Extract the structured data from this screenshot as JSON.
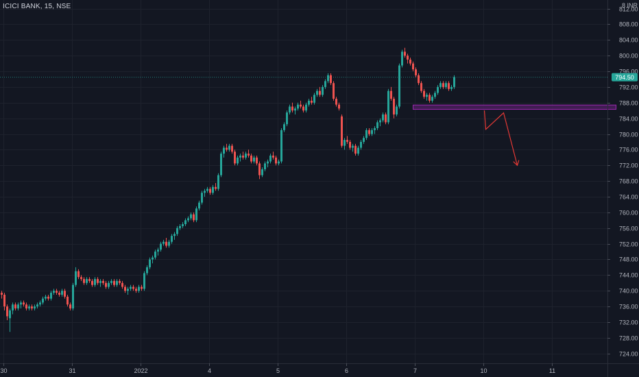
{
  "header": {
    "symbol": "ICICI BANK, 15, NSE",
    "currency": "INR",
    "top_partial_tick": "8"
  },
  "colors": {
    "background": "#131722",
    "grid": "#1e222d",
    "text": "#b2b5be",
    "up": "#26a69a",
    "down": "#ef5350",
    "zone_fill": "#4a1f5c",
    "zone_stroke": "#9c27b0",
    "arrow": "#e53935",
    "last_price_bg": "#26a69a"
  },
  "chart_data": {
    "type": "candlestick",
    "last_price": "794.50",
    "y_ticks": [
      "812.00",
      "808.00",
      "804.00",
      "800.00",
      "796.00",
      "792.00",
      "788.00",
      "784.00",
      "780.00",
      "776.00",
      "772.00",
      "768.00",
      "764.00",
      "760.00",
      "756.00",
      "752.00",
      "748.00",
      "744.00",
      "740.00",
      "736.00",
      "732.00",
      "728.00",
      "724.00"
    ],
    "ylim": [
      721.5,
      814.2
    ],
    "x_labels": [
      {
        "label": "30",
        "bar": 1
      },
      {
        "label": "31",
        "bar": 26
      },
      {
        "label": "2022",
        "bar": 51
      },
      {
        "label": "4",
        "bar": 76
      },
      {
        "label": "5",
        "bar": 101
      },
      {
        "label": "6",
        "bar": 126
      },
      {
        "label": "7",
        "bar": 151
      },
      {
        "label": "10",
        "bar": 176
      },
      {
        "label": "11",
        "bar": 201
      }
    ],
    "candles": [
      [
        739.5,
        740.0,
        738.0,
        739.0
      ],
      [
        739.0,
        739.5,
        735.0,
        736.0
      ],
      [
        736.0,
        736.5,
        732.5,
        733.5
      ],
      [
        733.0,
        735.5,
        729.5,
        735.0
      ],
      [
        735.0,
        737.0,
        734.0,
        736.5
      ],
      [
        736.5,
        737.0,
        735.0,
        735.5
      ],
      [
        735.5,
        737.0,
        735.0,
        736.5
      ],
      [
        736.5,
        737.5,
        735.5,
        737.0
      ],
      [
        737.0,
        737.5,
        736.0,
        736.5
      ],
      [
        736.5,
        737.0,
        735.0,
        735.5
      ],
      [
        735.5,
        736.5,
        735.0,
        736.0
      ],
      [
        736.0,
        736.5,
        735.0,
        735.5
      ],
      [
        735.5,
        736.5,
        735.0,
        736.0
      ],
      [
        736.0,
        737.0,
        735.5,
        736.5
      ],
      [
        736.5,
        737.5,
        736.0,
        737.0
      ],
      [
        737.0,
        738.5,
        736.5,
        738.0
      ],
      [
        738.0,
        739.0,
        737.5,
        738.5
      ],
      [
        738.5,
        739.0,
        737.5,
        738.0
      ],
      [
        738.0,
        740.0,
        737.5,
        739.5
      ],
      [
        739.5,
        740.5,
        739.0,
        740.0
      ],
      [
        740.0,
        740.5,
        739.0,
        739.5
      ],
      [
        739.5,
        740.0,
        738.5,
        739.0
      ],
      [
        739.0,
        740.5,
        738.5,
        740.0
      ],
      [
        740.0,
        740.5,
        738.0,
        738.5
      ],
      [
        738.5,
        739.0,
        736.0,
        736.5
      ],
      [
        736.5,
        737.0,
        735.0,
        735.5
      ],
      [
        735.5,
        742.0,
        735.0,
        741.5
      ],
      [
        741.5,
        746.0,
        741.0,
        745.0
      ],
      [
        745.0,
        745.5,
        743.0,
        743.5
      ],
      [
        743.5,
        744.0,
        742.5,
        743.0
      ],
      [
        743.0,
        743.5,
        741.5,
        742.0
      ],
      [
        742.0,
        743.5,
        741.5,
        743.0
      ],
      [
        743.0,
        743.5,
        742.0,
        742.5
      ],
      [
        742.5,
        743.0,
        741.0,
        741.5
      ],
      [
        741.5,
        743.5,
        741.0,
        743.0
      ],
      [
        743.0,
        743.5,
        741.5,
        742.0
      ],
      [
        742.0,
        743.0,
        741.0,
        742.5
      ],
      [
        742.5,
        743.0,
        741.5,
        742.0
      ],
      [
        742.0,
        742.5,
        740.5,
        741.0
      ],
      [
        741.0,
        742.5,
        740.5,
        742.0
      ],
      [
        742.0,
        743.0,
        741.5,
        742.5
      ],
      [
        742.5,
        743.0,
        741.0,
        741.5
      ],
      [
        741.5,
        743.0,
        741.0,
        742.5
      ],
      [
        742.5,
        743.0,
        741.5,
        742.0
      ],
      [
        742.0,
        742.5,
        740.5,
        741.0
      ],
      [
        741.0,
        741.5,
        739.5,
        740.0
      ],
      [
        740.0,
        741.0,
        739.0,
        740.5
      ],
      [
        740.5,
        741.5,
        740.0,
        741.0
      ],
      [
        741.0,
        741.5,
        740.0,
        740.5
      ],
      [
        740.5,
        741.0,
        739.5,
        740.0
      ],
      [
        740.0,
        741.5,
        739.5,
        741.0
      ],
      [
        741.0,
        741.5,
        740.0,
        740.5
      ],
      [
        740.5,
        745.0,
        740.0,
        744.5
      ],
      [
        744.5,
        746.5,
        744.0,
        746.0
      ],
      [
        746.0,
        748.5,
        745.5,
        748.0
      ],
      [
        748.0,
        749.0,
        747.0,
        748.5
      ],
      [
        748.5,
        750.5,
        748.0,
        750.0
      ],
      [
        750.0,
        751.0,
        749.0,
        750.5
      ],
      [
        750.5,
        752.5,
        750.0,
        752.0
      ],
      [
        752.0,
        753.0,
        751.5,
        752.5
      ],
      [
        752.5,
        753.5,
        751.0,
        751.5
      ],
      [
        751.5,
        753.0,
        751.0,
        752.5
      ],
      [
        752.5,
        754.5,
        752.0,
        754.0
      ],
      [
        754.0,
        755.0,
        753.0,
        754.5
      ],
      [
        754.5,
        756.5,
        754.0,
        756.0
      ],
      [
        756.0,
        757.0,
        755.5,
        756.5
      ],
      [
        756.5,
        757.5,
        756.0,
        757.0
      ],
      [
        757.0,
        758.5,
        756.5,
        758.0
      ],
      [
        758.0,
        759.0,
        757.5,
        758.5
      ],
      [
        758.5,
        760.0,
        758.0,
        759.5
      ],
      [
        759.5,
        760.0,
        757.5,
        758.0
      ],
      [
        758.0,
        761.5,
        757.5,
        761.0
      ],
      [
        761.0,
        763.0,
        760.5,
        762.5
      ],
      [
        762.5,
        765.5,
        762.0,
        765.0
      ],
      [
        765.0,
        766.0,
        764.0,
        765.5
      ],
      [
        765.5,
        766.5,
        765.0,
        766.0
      ],
      [
        766.0,
        766.5,
        764.5,
        765.0
      ],
      [
        765.0,
        767.0,
        764.5,
        766.5
      ],
      [
        766.5,
        767.5,
        765.5,
        766.0
      ],
      [
        766.0,
        770.0,
        765.5,
        769.5
      ],
      [
        769.5,
        775.5,
        769.0,
        775.0
      ],
      [
        775.0,
        777.0,
        774.0,
        776.5
      ],
      [
        776.5,
        777.5,
        775.5,
        776.0
      ],
      [
        776.0,
        777.5,
        775.5,
        777.0
      ],
      [
        777.0,
        777.5,
        775.0,
        775.5
      ],
      [
        775.5,
        776.0,
        772.0,
        772.5
      ],
      [
        772.5,
        774.5,
        772.0,
        774.0
      ],
      [
        774.0,
        775.0,
        773.0,
        774.5
      ],
      [
        774.5,
        775.5,
        773.5,
        774.0
      ],
      [
        774.0,
        775.5,
        773.5,
        775.0
      ],
      [
        775.0,
        776.0,
        774.0,
        774.5
      ],
      [
        774.5,
        775.0,
        772.5,
        773.0
      ],
      [
        773.0,
        774.5,
        772.5,
        774.0
      ],
      [
        774.0,
        774.5,
        772.0,
        772.5
      ],
      [
        772.5,
        773.0,
        768.5,
        769.5
      ],
      [
        769.5,
        771.5,
        769.0,
        771.0
      ],
      [
        771.0,
        773.0,
        770.5,
        772.5
      ],
      [
        772.5,
        773.5,
        771.5,
        773.0
      ],
      [
        773.0,
        775.0,
        772.5,
        774.5
      ],
      [
        774.5,
        775.5,
        773.5,
        774.0
      ],
      [
        774.0,
        774.5,
        772.0,
        772.5
      ],
      [
        772.5,
        773.5,
        772.0,
        773.0
      ],
      [
        773.0,
        781.5,
        772.5,
        781.0
      ],
      [
        781.0,
        783.0,
        780.5,
        782.5
      ],
      [
        782.5,
        786.0,
        782.0,
        785.5
      ],
      [
        785.5,
        787.5,
        785.0,
        787.0
      ],
      [
        787.0,
        788.0,
        785.5,
        786.0
      ],
      [
        786.0,
        787.0,
        785.0,
        786.5
      ],
      [
        786.5,
        788.0,
        786.0,
        787.5
      ],
      [
        787.5,
        788.5,
        786.5,
        787.0
      ],
      [
        787.0,
        787.5,
        785.5,
        786.0
      ],
      [
        786.0,
        788.0,
        785.5,
        787.5
      ],
      [
        787.5,
        789.0,
        787.0,
        788.5
      ],
      [
        788.5,
        789.5,
        787.5,
        788.0
      ],
      [
        788.0,
        790.5,
        787.5,
        790.0
      ],
      [
        790.0,
        791.5,
        789.5,
        791.0
      ],
      [
        791.0,
        792.0,
        789.5,
        790.0
      ],
      [
        790.0,
        792.5,
        789.5,
        792.0
      ],
      [
        792.0,
        794.0,
        791.5,
        793.5
      ],
      [
        793.5,
        795.5,
        793.0,
        795.0
      ],
      [
        795.0,
        795.5,
        792.5,
        793.0
      ],
      [
        793.0,
        793.5,
        788.5,
        789.0
      ],
      [
        789.0,
        789.5,
        787.0,
        787.5
      ],
      [
        787.5,
        788.0,
        786.0,
        786.5
      ],
      [
        784.5,
        785.0,
        776.5,
        777.0
      ],
      [
        777.0,
        779.0,
        776.0,
        778.5
      ],
      [
        778.5,
        779.5,
        777.5,
        778.0
      ],
      [
        778.0,
        778.5,
        776.0,
        776.5
      ],
      [
        776.5,
        777.5,
        775.5,
        777.0
      ],
      [
        777.0,
        777.5,
        774.5,
        775.0
      ],
      [
        775.0,
        777.0,
        774.5,
        776.5
      ],
      [
        776.5,
        778.5,
        776.0,
        778.0
      ],
      [
        778.0,
        779.5,
        777.5,
        779.0
      ],
      [
        779.0,
        781.5,
        778.5,
        781.0
      ],
      [
        781.0,
        781.5,
        779.5,
        780.0
      ],
      [
        780.0,
        781.5,
        779.5,
        781.0
      ],
      [
        781.0,
        782.0,
        780.0,
        781.5
      ],
      [
        781.5,
        783.5,
        781.0,
        783.0
      ],
      [
        783.0,
        784.0,
        782.0,
        783.5
      ],
      [
        783.5,
        785.5,
        783.0,
        785.0
      ],
      [
        785.0,
        785.5,
        782.5,
        783.0
      ],
      [
        783.0,
        791.5,
        782.5,
        791.0
      ],
      [
        791.0,
        792.0,
        788.5,
        789.0
      ],
      [
        789.0,
        789.5,
        784.0,
        785.0
      ],
      [
        785.0,
        787.5,
        784.5,
        787.0
      ],
      [
        787.0,
        798.0,
        786.5,
        797.5
      ],
      [
        797.5,
        801.5,
        797.0,
        801.0
      ],
      [
        801.0,
        802.0,
        799.5,
        800.0
      ],
      [
        800.0,
        800.5,
        798.0,
        799.0
      ],
      [
        799.0,
        799.5,
        797.5,
        798.0
      ],
      [
        798.0,
        798.5,
        796.0,
        796.5
      ],
      [
        796.5,
        797.0,
        794.5,
        795.0
      ],
      [
        795.0,
        795.5,
        792.5,
        793.0
      ],
      [
        793.0,
        793.5,
        790.5,
        791.0
      ],
      [
        791.0,
        791.5,
        789.0,
        789.5
      ],
      [
        789.5,
        790.5,
        788.5,
        790.0
      ],
      [
        790.0,
        790.5,
        788.0,
        788.5
      ],
      [
        788.5,
        790.0,
        788.0,
        789.5
      ],
      [
        789.5,
        791.0,
        789.0,
        790.5
      ],
      [
        790.5,
        792.5,
        790.0,
        792.0
      ],
      [
        792.0,
        793.5,
        791.5,
        793.0
      ],
      [
        793.0,
        793.5,
        791.5,
        792.0
      ],
      [
        792.0,
        793.5,
        791.5,
        793.0
      ],
      [
        793.0,
        793.5,
        791.0,
        791.5
      ],
      [
        791.5,
        792.5,
        791.0,
        792.0
      ],
      [
        792.0,
        795.0,
        791.5,
        794.5
      ]
    ],
    "zone": {
      "bar_start": 150.5,
      "bar_end": 224.5,
      "price_low": 786.3,
      "price_high": 787.4
    },
    "projection_path": [
      {
        "bar": 176.5,
        "price": 786.0
      },
      {
        "bar": 177.0,
        "price": 781.2
      },
      {
        "bar": 183.5,
        "price": 785.4
      },
      {
        "bar": 188.5,
        "price": 772.0
      }
    ]
  }
}
